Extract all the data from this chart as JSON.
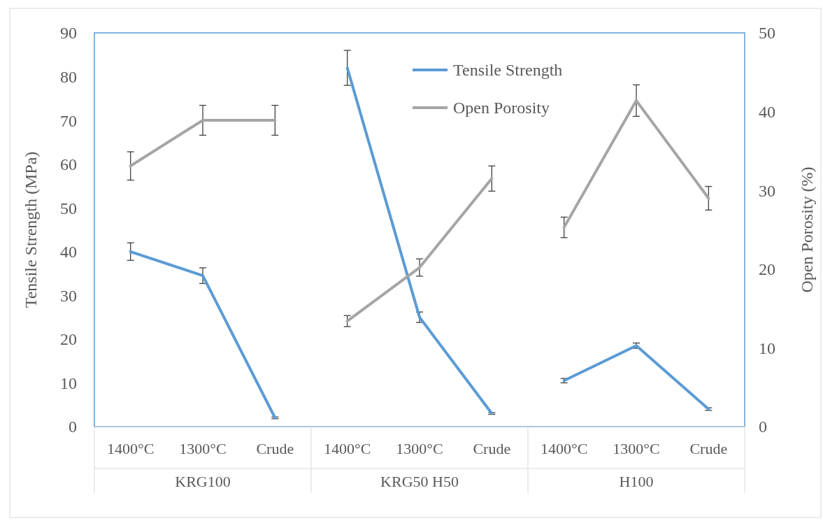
{
  "chart_data": {
    "type": "line",
    "categories": [
      "1400°C",
      "1300°C",
      "Crude",
      "1400°C",
      "1300°C",
      "Crude",
      "1400°C",
      "1300°C",
      "Crude"
    ],
    "annotations": [
      "KRG100",
      "KRG50 H50",
      "H100"
    ],
    "ylabel": "Tensile Strength (MPa)",
    "y2label": "Open Porosity (%)",
    "ylim": [
      0,
      90
    ],
    "yticks": [
      0,
      10,
      20,
      30,
      40,
      50,
      60,
      70,
      80,
      90
    ],
    "y2lim": [
      0,
      50
    ],
    "y2ticks": [
      0,
      10,
      20,
      30,
      40,
      50
    ],
    "legend": "top",
    "grid": false,
    "marker": "none",
    "line_style": "solid",
    "series": [
      {
        "name": "Tensile Strength",
        "color": "#5b9bd5",
        "values": [
          40,
          34.5,
          2,
          82,
          25,
          3,
          10.5,
          18.5,
          4
        ],
        "errors": [
          2,
          1.8,
          0.2,
          4,
          1.2,
          0.2,
          0.5,
          0.6,
          0.3
        ]
      },
      {
        "name": "Open Porosity",
        "color": "#a5a5a5",
        "axis": "y2",
        "values": [
          33.1,
          38.9,
          38.9,
          13.4,
          20.2,
          31.5,
          25.3,
          41.4,
          29
        ],
        "errors": [
          1.8,
          1.9,
          1.9,
          0.7,
          1.1,
          1.6,
          1.3,
          2,
          1.5
        ]
      }
    ]
  }
}
